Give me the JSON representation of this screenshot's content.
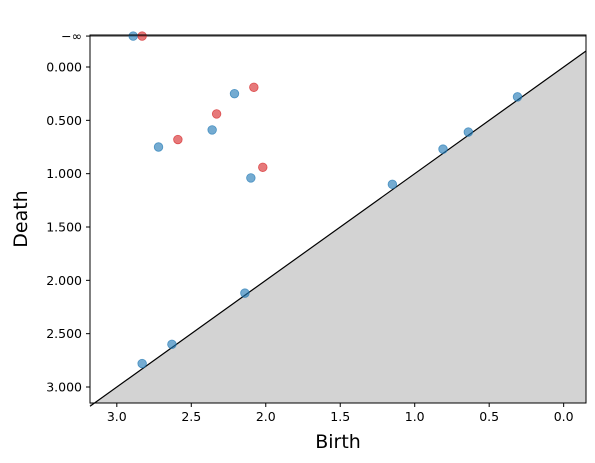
{
  "chart_data": {
    "type": "scatter",
    "title": "",
    "xlabel": "Birth",
    "ylabel": "Death",
    "x_inverted": true,
    "y_inverted": true,
    "xlim": [
      3.18,
      -0.15
    ],
    "ylim": [
      3.15,
      -0.3
    ],
    "x_ticks": [
      {
        "value": 3.0,
        "label": "3.0"
      },
      {
        "value": 2.5,
        "label": "2.5"
      },
      {
        "value": 2.0,
        "label": "2.0"
      },
      {
        "value": 1.5,
        "label": "1.5"
      },
      {
        "value": 1.0,
        "label": "1.0"
      },
      {
        "value": 0.5,
        "label": "0.5"
      },
      {
        "value": 0.0,
        "label": "0.0"
      }
    ],
    "y_ticks": [
      {
        "value": 0.0,
        "label": "0.000"
      },
      {
        "value": 0.5,
        "label": "0.500"
      },
      {
        "value": 1.0,
        "label": "1.000"
      },
      {
        "value": 1.5,
        "label": "1.500"
      },
      {
        "value": 2.0,
        "label": "2.000"
      },
      {
        "value": 2.5,
        "label": "2.500"
      },
      {
        "value": 3.0,
        "label": "3.000"
      }
    ],
    "infinity_line": {
      "value": -0.29,
      "label": "−∞"
    },
    "diagonal": true,
    "grid": false,
    "colors": {
      "series_blue": "#1f77b4",
      "series_red": "#d62728",
      "shaded_region": "#d3d3d3",
      "infinity_line": "#555555",
      "diagonal": "#000000"
    },
    "series": [
      {
        "color": "#1f77b4",
        "points": [
          {
            "x": 2.89,
            "y": -0.29
          },
          {
            "x": 2.21,
            "y": 0.25
          },
          {
            "x": 2.36,
            "y": 0.59
          },
          {
            "x": 2.72,
            "y": 0.75
          },
          {
            "x": 2.1,
            "y": 1.04
          },
          {
            "x": 1.15,
            "y": 1.1
          },
          {
            "x": 0.81,
            "y": 0.77
          },
          {
            "x": 0.64,
            "y": 0.61
          },
          {
            "x": 0.31,
            "y": 0.28
          },
          {
            "x": 2.14,
            "y": 2.12
          },
          {
            "x": 2.63,
            "y": 2.6
          },
          {
            "x": 2.83,
            "y": 2.78
          }
        ]
      },
      {
        "color": "#d62728",
        "points": [
          {
            "x": 2.83,
            "y": -0.29
          },
          {
            "x": 2.08,
            "y": 0.19
          },
          {
            "x": 2.33,
            "y": 0.44
          },
          {
            "x": 2.59,
            "y": 0.68
          },
          {
            "x": 2.02,
            "y": 0.94
          }
        ]
      }
    ]
  }
}
